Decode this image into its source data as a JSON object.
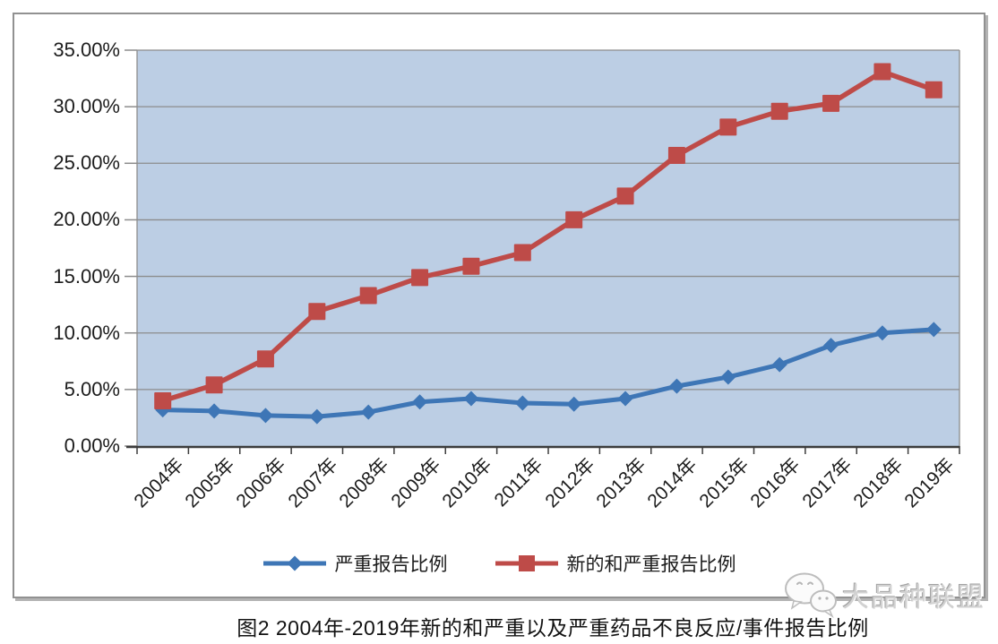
{
  "caption": "图2 2004年-2019年新的和严重以及严重药品不良反应/事件报告比例",
  "watermark": {
    "label": "大品种联盟",
    "icon": "wechat-icon"
  },
  "chart_data": {
    "type": "line",
    "title": "图2 2004年-2019年新的和严重以及严重药品不良反应/事件报告比例",
    "categories": [
      "2004年",
      "2005年",
      "2006年",
      "2007年",
      "2008年",
      "2009年",
      "2010年",
      "2011年",
      "2012年",
      "2013年",
      "2014年",
      "2015年",
      "2016年",
      "2017年",
      "2018年",
      "2019年"
    ],
    "series": [
      {
        "name": "严重报告比例",
        "marker": "diamond",
        "color": "#3E76B6",
        "values": [
          3.2,
          3.1,
          2.7,
          2.6,
          3.0,
          3.9,
          4.2,
          3.8,
          3.7,
          4.2,
          5.3,
          6.1,
          7.2,
          8.9,
          10.0,
          10.3
        ]
      },
      {
        "name": "新的和严重报告比例",
        "marker": "square",
        "color": "#BE4B48",
        "values": [
          4.0,
          5.4,
          7.7,
          11.9,
          13.3,
          14.9,
          15.9,
          17.1,
          20.0,
          22.1,
          25.7,
          28.2,
          29.6,
          30.3,
          33.1,
          31.5
        ]
      }
    ],
    "xlabel": "",
    "ylabel": "",
    "ylim": [
      0,
      35
    ],
    "ytick_step": 5,
    "ytick_labels": [
      "0.00%",
      "5.00%",
      "10.00%",
      "15.00%",
      "20.00%",
      "25.00%",
      "30.00%",
      "35.00%"
    ],
    "grid": true,
    "legend_position": "bottom",
    "plot_bg": "#BCCEE4",
    "gridline_color": "#8C8C8C",
    "axis_color": "#3C3C3C"
  }
}
